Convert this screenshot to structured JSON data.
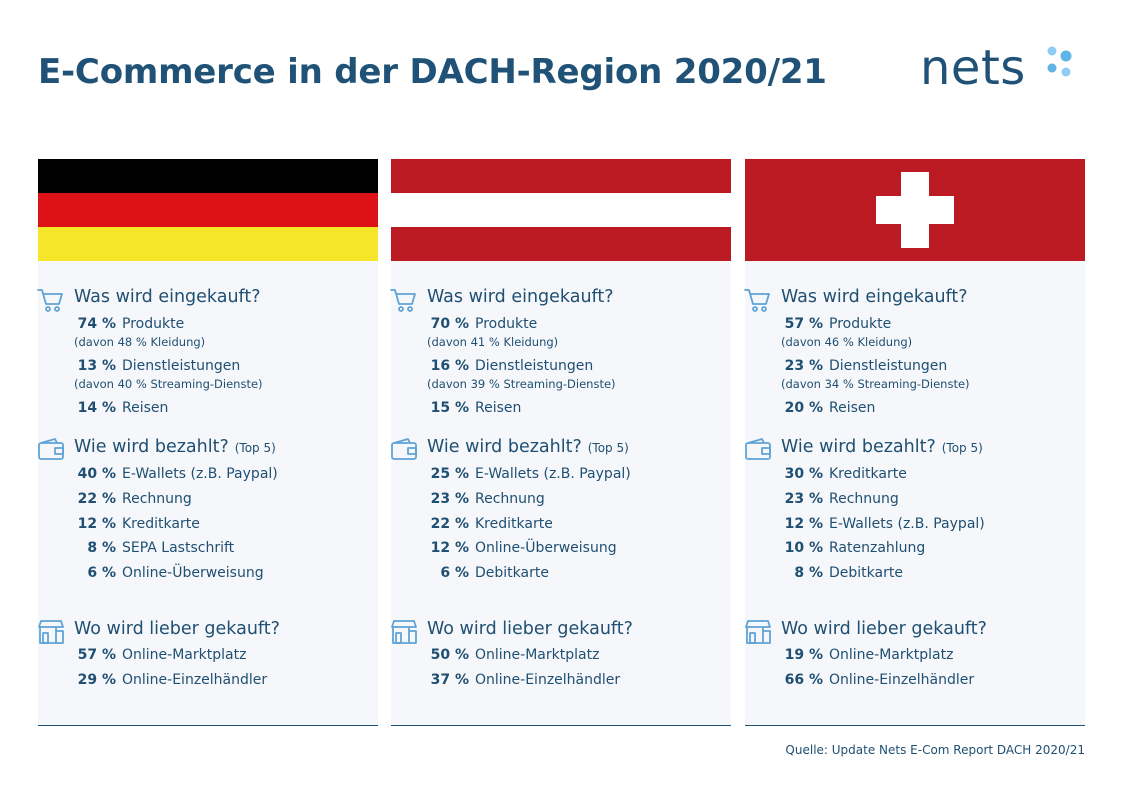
{
  "title": "E-Commerce in der DACH-Region 2020/21",
  "logo": {
    "text": "nets",
    "dot_color": "#5fb3e6"
  },
  "colors": {
    "brand": "#1f5276",
    "panel_bg": "#f5f7fa",
    "flag_red": "#bb1a22",
    "flag_black": "#000000",
    "flag_gold": "#f6e62a",
    "flag_white": "#ffffff"
  },
  "countries": [
    {
      "id": "de",
      "flag": "germany",
      "what": {
        "title": "Was wird eingekauft?",
        "products_pct": "74 %",
        "products_label": "Produkte",
        "products_note": "(davon 48 % Kleidung)",
        "services_pct": "13 %",
        "services_label": "Dienstleistungen",
        "services_note": "(davon 40 % Streaming-Dienste)",
        "travel_pct": "14 %",
        "travel_label": "Reisen"
      },
      "pay": {
        "title": "Wie wird bezahlt?",
        "note": "(Top 5)",
        "items": [
          {
            "pct": "40 %",
            "label": "E-Wallets (z.B. Paypal)"
          },
          {
            "pct": "22 %",
            "label": "Rechnung"
          },
          {
            "pct": "12 %",
            "label": "Kreditkarte"
          },
          {
            "pct": "8 %",
            "label": "SEPA Lastschrift"
          },
          {
            "pct": "6 %",
            "label": "Online-Überweisung"
          }
        ]
      },
      "where": {
        "title": "Wo wird lieber gekauft?",
        "items": [
          {
            "pct": "57 %",
            "label": "Online-Marktplatz"
          },
          {
            "pct": "29 %",
            "label": "Online-Einzelhändler"
          }
        ]
      }
    },
    {
      "id": "at",
      "flag": "austria",
      "what": {
        "title": "Was wird eingekauft?",
        "products_pct": "70 %",
        "products_label": "Produkte",
        "products_note": "(davon 41 % Kleidung)",
        "services_pct": "16 %",
        "services_label": "Dienstleistungen",
        "services_note": "(davon 39 % Streaming-Dienste)",
        "travel_pct": "15 %",
        "travel_label": "Reisen"
      },
      "pay": {
        "title": "Wie wird bezahlt?",
        "note": "(Top 5)",
        "items": [
          {
            "pct": "25 %",
            "label": "E-Wallets (z.B. Paypal)"
          },
          {
            "pct": "23 %",
            "label": "Rechnung"
          },
          {
            "pct": "22 %",
            "label": "Kreditkarte"
          },
          {
            "pct": "12 %",
            "label": "Online-Überweisung"
          },
          {
            "pct": "6 %",
            "label": "Debitkarte"
          }
        ]
      },
      "where": {
        "title": "Wo wird lieber gekauft?",
        "items": [
          {
            "pct": "50 %",
            "label": "Online-Marktplatz"
          },
          {
            "pct": "37 %",
            "label": "Online-Einzelhändler"
          }
        ]
      }
    },
    {
      "id": "ch",
      "flag": "switzerland",
      "what": {
        "title": "Was wird eingekauft?",
        "products_pct": "57 %",
        "products_label": "Produkte",
        "products_note": "(davon 46 % Kleidung)",
        "services_pct": "23 %",
        "services_label": "Dienstleistungen",
        "services_note": "(davon 34 % Streaming-Dienste)",
        "travel_pct": "20 %",
        "travel_label": "Reisen"
      },
      "pay": {
        "title": "Wie wird bezahlt?",
        "note": "(Top 5)",
        "items": [
          {
            "pct": "30 %",
            "label": "Kreditkarte"
          },
          {
            "pct": "23 %",
            "label": "Rechnung"
          },
          {
            "pct": "12 %",
            "label": "E-Wallets (z.B. Paypal)"
          },
          {
            "pct": "10 %",
            "label": "Ratenzahlung"
          },
          {
            "pct": "8 %",
            "label": "Debitkarte"
          }
        ]
      },
      "where": {
        "title": "Wo wird lieber gekauft?",
        "items": [
          {
            "pct": "19 %",
            "label": "Online-Marktplatz"
          },
          {
            "pct": "66 %",
            "label": "Online-Einzelhändler"
          }
        ]
      }
    }
  ],
  "source": "Quelle: Update Nets E-Com Report DACH 2020/21"
}
